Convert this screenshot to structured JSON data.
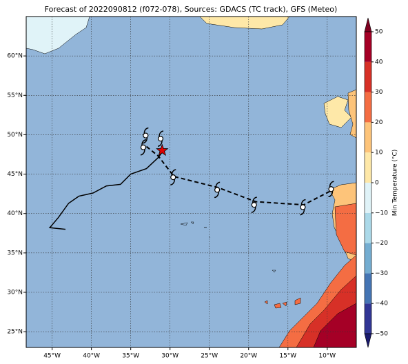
{
  "chart_data": {
    "type": "map",
    "title": "Forecast of 2022090812 (f072-078), Sources: GDACS (TC track), GFS (Meteo)",
    "xlim": [
      -48.3,
      -6.3
    ],
    "ylim": [
      23,
      65
    ],
    "xticks": [
      {
        "value": -45,
        "label": "45°W"
      },
      {
        "value": -40,
        "label": "40°W"
      },
      {
        "value": -35,
        "label": "35°W"
      },
      {
        "value": -30,
        "label": "30°W"
      },
      {
        "value": -25,
        "label": "25°W"
      },
      {
        "value": -20,
        "label": "20°W"
      },
      {
        "value": -15,
        "label": "15°W"
      },
      {
        "value": -10,
        "label": "10°W"
      }
    ],
    "yticks": [
      {
        "value": 25,
        "label": "25°N"
      },
      {
        "value": 30,
        "label": "30°N"
      },
      {
        "value": 35,
        "label": "35°N"
      },
      {
        "value": 40,
        "label": "40°N"
      },
      {
        "value": 45,
        "label": "45°N"
      },
      {
        "value": 50,
        "label": "50°N"
      },
      {
        "value": 55,
        "label": "55°N"
      },
      {
        "value": 60,
        "label": "60°N"
      }
    ],
    "grid": true,
    "sea_color": "#92b5d9",
    "track": {
      "lon": [
        -43.3,
        -45.3,
        -44.2,
        -42.9,
        -41.6,
        -39.8,
        -38.1,
        -36.3,
        -35.0,
        -33.0,
        -31.5,
        -31.0
      ],
      "lat": [
        38.0,
        38.2,
        39.5,
        41.3,
        42.2,
        42.6,
        43.5,
        43.7,
        45.0,
        45.7,
        47.1,
        47.8
      ]
    },
    "forecast_track": {
      "lon": [
        -33.0,
        -31.5,
        -29.5,
        -23.9,
        -19.1,
        -13.0,
        -9.3
      ],
      "lat": [
        48.5,
        47.3,
        44.7,
        43.3,
        41.5,
        41.1,
        43.0
      ]
    },
    "forecast_points": {
      "lon": [
        -33.1,
        -31.2,
        -33.4,
        -29.6,
        -24.0,
        -19.3,
        -13.1,
        -9.5
      ],
      "lat": [
        49.9,
        49.5,
        48.4,
        44.6,
        43.0,
        41.1,
        40.8,
        43.1
      ]
    },
    "current_position": {
      "lon": -31.0,
      "lat": 48.0
    },
    "colorbar": {
      "label": "Min Temperature (°C)",
      "ticks": [
        {
          "value": -50,
          "label": "−50"
        },
        {
          "value": -40,
          "label": "−40"
        },
        {
          "value": -30,
          "label": "−30"
        },
        {
          "value": -20,
          "label": "−20"
        },
        {
          "value": -10,
          "label": "−10"
        },
        0,
        10,
        20,
        30,
        40,
        50
      ],
      "colors": [
        "#313695",
        "#4575b4",
        "#74add1",
        "#abd9e9",
        "#e0f3f8",
        "#fee8a8",
        "#fdc47a",
        "#f46d43",
        "#d73027",
        "#a50026"
      ],
      "extend_colors": [
        "#1a1a6e",
        "#7f0020"
      ]
    }
  }
}
